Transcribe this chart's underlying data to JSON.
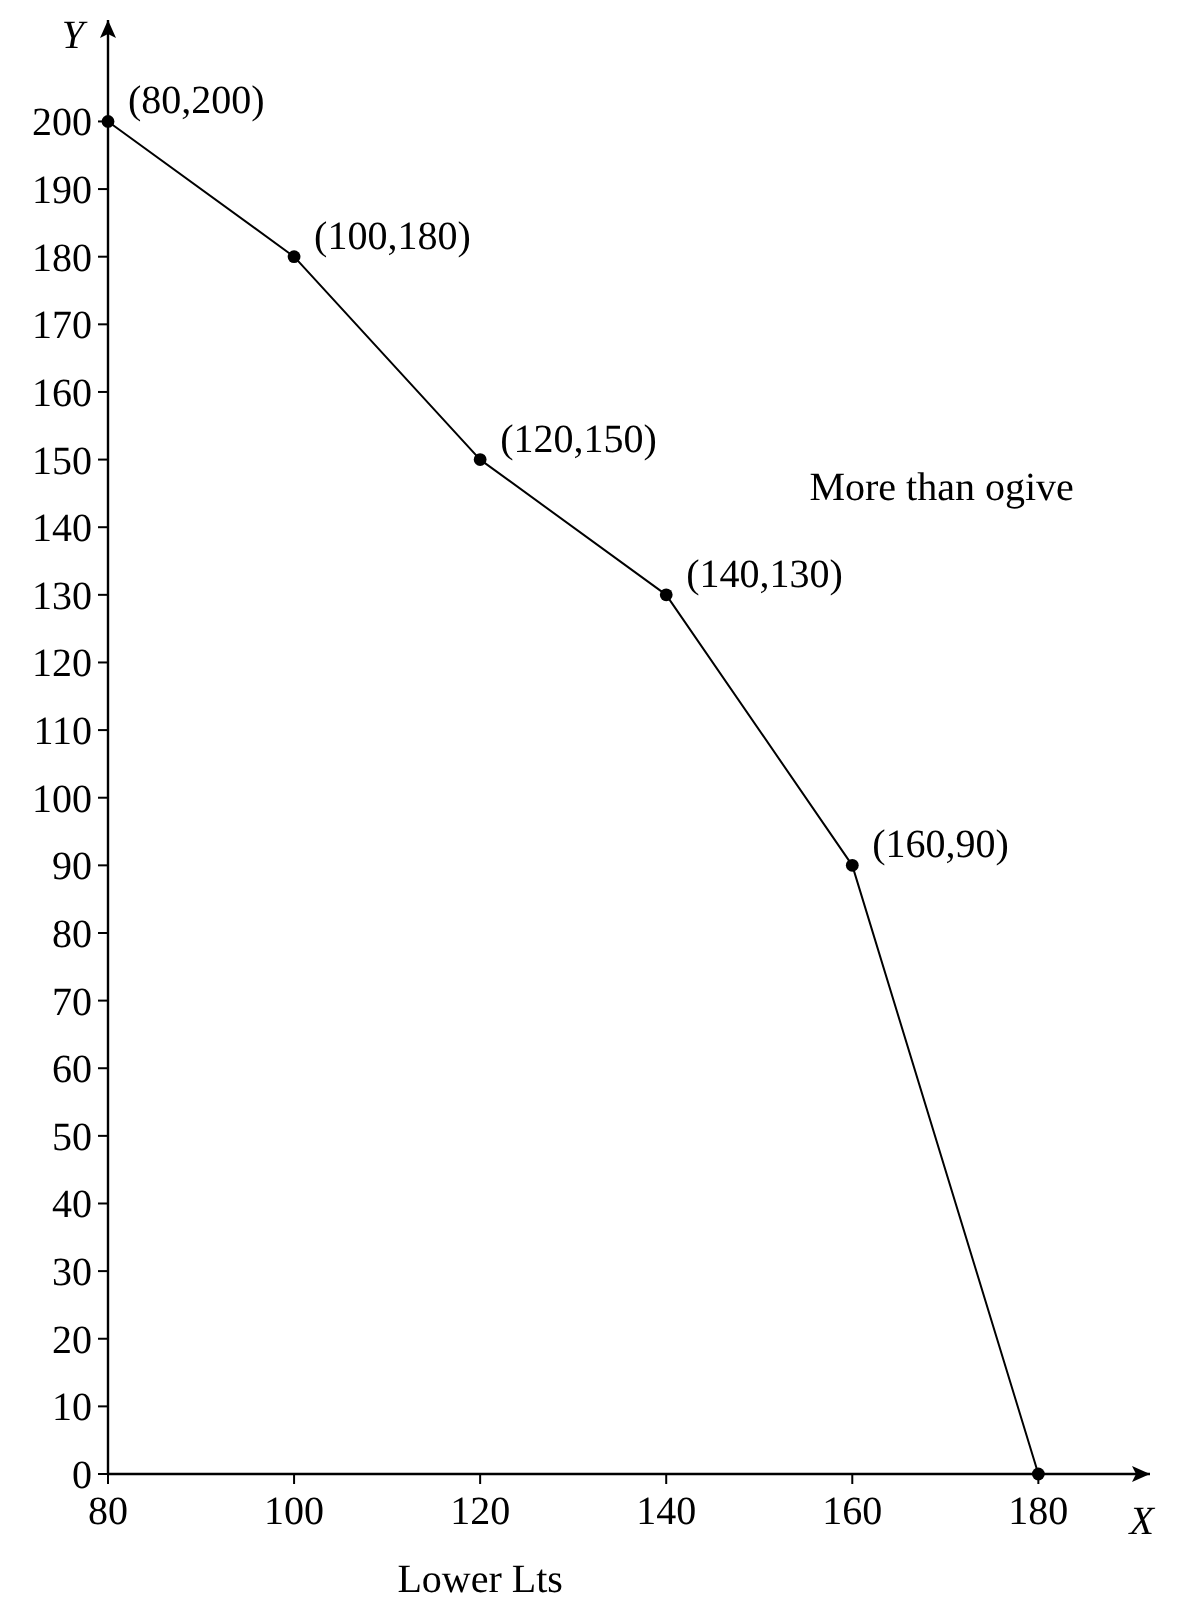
{
  "chart_data": {
    "type": "line",
    "xlabel": "Lower Lts",
    "ylabel": "Y",
    "x": [
      80,
      100,
      120,
      140,
      160,
      180
    ],
    "series": [
      {
        "color": "#000000",
        "values": [
          200,
          180,
          150,
          130,
          90,
          0
        ]
      }
    ],
    "xlim": [
      80,
      192
    ],
    "ylim": [
      0,
      215
    ],
    "xticks": [
      80,
      100,
      120,
      140,
      160,
      180
    ],
    "yticks": [
      0,
      10,
      20,
      30,
      40,
      50,
      60,
      70,
      80,
      90,
      100,
      110,
      120,
      130,
      140,
      150,
      160,
      170,
      180,
      190,
      200
    ],
    "marker": "circle",
    "line_style": "solid",
    "grid": false,
    "annotations": [
      "X",
      "More than ogive",
      {
        "text": "(80,200)",
        "x": 80,
        "y": 200
      },
      {
        "text": "(100,180)",
        "x": 100,
        "y": 180
      },
      {
        "text": "(120,150)",
        "x": 120,
        "y": 150
      },
      {
        "text": "(140,130)",
        "x": 140,
        "y": 130
      },
      {
        "text": "(160,90)",
        "x": 160,
        "y": 90
      }
    ]
  }
}
